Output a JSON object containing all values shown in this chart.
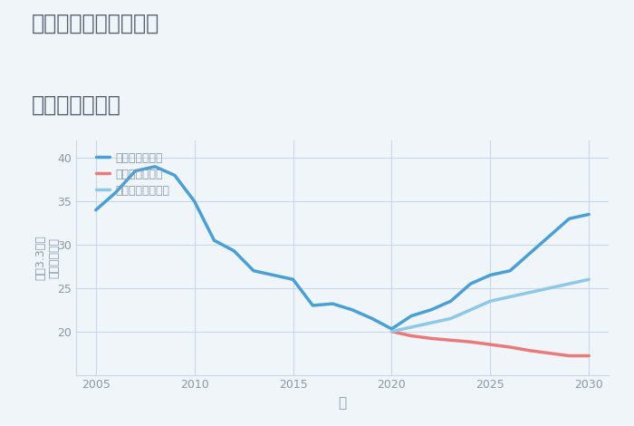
{
  "title_line1": "三重県桑名市赤尾台の",
  "title_line2": "土地の価格推移",
  "xlabel": "年",
  "ylabel": "単価（万円）",
  "ylabel2": "坪（3.3㎡）",
  "background_color": "#f0f5f9",
  "plot_bg_color": "#f0f5f9",
  "xlim": [
    2004,
    2031
  ],
  "ylim": [
    15,
    42
  ],
  "yticks": [
    20,
    25,
    30,
    35,
    40
  ],
  "xticks": [
    2005,
    2010,
    2015,
    2020,
    2025,
    2030
  ],
  "grid_color": "#c8d8e8",
  "scenarios": {
    "good": {
      "label": "グッドシナリオ",
      "color": "#4a9fd4",
      "linewidth": 2.5,
      "x": [
        2005,
        2006,
        2007,
        2008,
        2009,
        2010,
        2011,
        2012,
        2013,
        2014,
        2015,
        2016,
        2017,
        2018,
        2019,
        2020,
        2021,
        2022,
        2023,
        2024,
        2025,
        2026,
        2027,
        2028,
        2029,
        2030
      ],
      "y": [
        34.0,
        36.0,
        38.5,
        39.0,
        38.0,
        35.0,
        30.5,
        29.3,
        27.0,
        26.5,
        26.0,
        23.0,
        23.2,
        22.5,
        21.5,
        20.3,
        21.8,
        22.5,
        23.5,
        25.5,
        26.5,
        27.0,
        29.0,
        31.0,
        33.0,
        33.5
      ]
    },
    "bad": {
      "label": "バッドシナリオ",
      "color": "#e87a7a",
      "linewidth": 2.5,
      "x": [
        2020,
        2021,
        2022,
        2023,
        2024,
        2025,
        2026,
        2027,
        2028,
        2029,
        2030
      ],
      "y": [
        20.0,
        19.5,
        19.2,
        19.0,
        18.8,
        18.5,
        18.2,
        17.8,
        17.5,
        17.2,
        17.2
      ]
    },
    "normal": {
      "label": "ノーマルシナリオ",
      "color": "#8dc8e8",
      "linewidth": 2.5,
      "x": [
        2020,
        2021,
        2022,
        2023,
        2024,
        2025,
        2026,
        2027,
        2028,
        2029,
        2030
      ],
      "y": [
        20.0,
        20.5,
        21.0,
        21.5,
        22.5,
        23.5,
        24.0,
        24.5,
        25.0,
        25.5,
        26.0
      ]
    }
  },
  "title_color": "#555f6e",
  "axis_color": "#8899aa",
  "tick_color": "#8899aa",
  "title_fontsize": 17,
  "legend_fontsize": 9,
  "tick_fontsize": 9,
  "ylabel_fontsize": 9,
  "xlabel_fontsize": 11
}
